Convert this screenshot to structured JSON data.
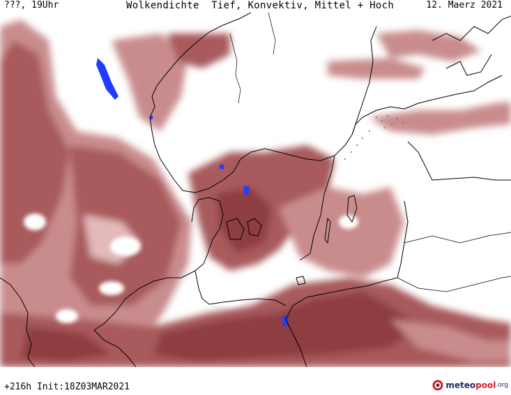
{
  "header": {
    "left_label": "???, 19Uhr",
    "title": "Wolkendichte  Tief, Konvektiv, Mittel + Hoch",
    "date": "12. Maerz 2021"
  },
  "footer": {
    "run_info": "+216h Init:18Z03MAR2021",
    "logo_meteo": "meteo",
    "logo_pool": "pool",
    "logo_org": ".org"
  },
  "colors": {
    "cloud_dark": "#8e3d3f",
    "cloud_mid": "#a85a5c",
    "cloud_light": "#c98c8d",
    "cloud_pale": "#e3b9b9",
    "precip_blue": "#1f3cff",
    "coast": "#000000",
    "logo_red": "#d31f24",
    "logo_navy": "#1f2b63"
  },
  "icons": {
    "logo": "meteopool-logo-icon"
  }
}
